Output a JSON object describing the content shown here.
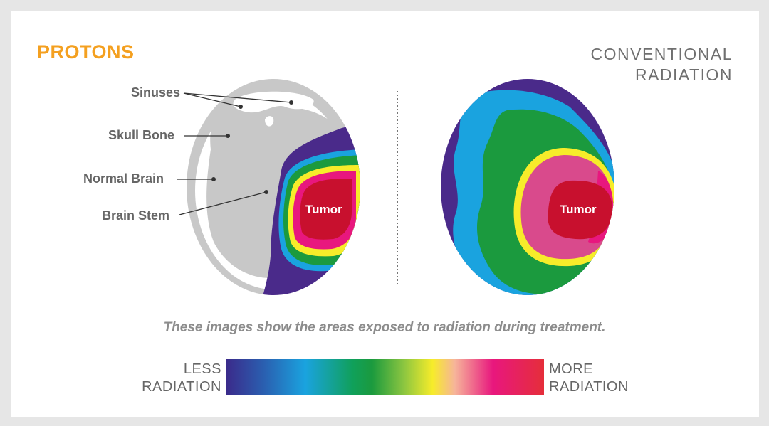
{
  "titles": {
    "left": "PROTONS",
    "right_line1": "CONVENTIONAL",
    "right_line2": "RADIATION"
  },
  "labels": {
    "sinuses": "Sinuses",
    "skull_bone": "Skull Bone",
    "normal_brain": "Normal Brain",
    "brain_stem": "Brain Stem",
    "tumor": "Tumor"
  },
  "caption": "These images show the areas exposed to radiation during treatment.",
  "legend": {
    "less_line1": "LESS",
    "less_line2": "RADIATION",
    "more_line1": "MORE",
    "more_line2": "RADIATION",
    "colors": [
      "#3b2a8a",
      "#1aa3df",
      "#1b9a3e",
      "#f7ec2a",
      "#e8177e",
      "#e52e3a"
    ]
  },
  "colors": {
    "accent_orange": "#f4a020",
    "text_gray": "#666666",
    "skull_gray": "#c8c8c8"
  }
}
